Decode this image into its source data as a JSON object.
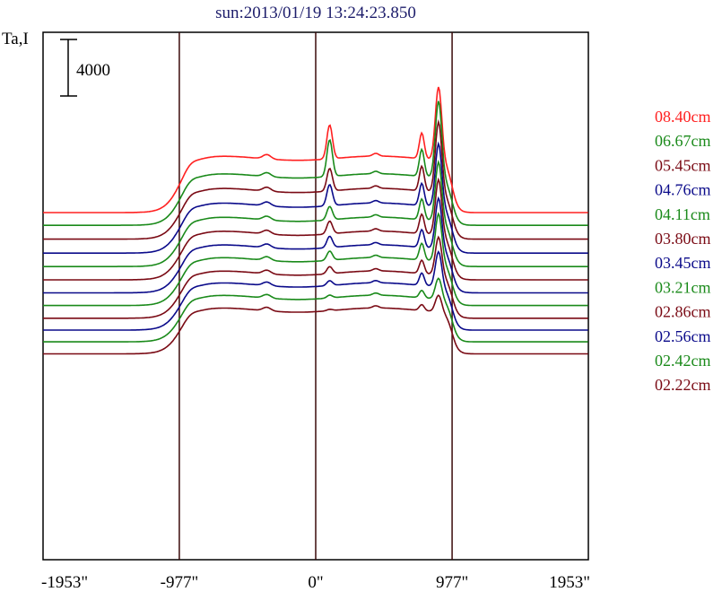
{
  "chart_data": {
    "type": "line",
    "title": "sun:2013/01/19 13:24:23.850",
    "ylabel": "Ta,I",
    "xlabel": "",
    "scale_bar_label": "4000",
    "scale_bar_value": 4000,
    "x_ticks": [
      {
        "value": -1953,
        "label": "-1953\""
      },
      {
        "value": -977,
        "label": "-977\""
      },
      {
        "value": 0,
        "label": "0\""
      },
      {
        "value": 977,
        "label": "977\""
      },
      {
        "value": 1953,
        "label": "1953\""
      }
    ],
    "vertical_lines": [
      -977,
      0,
      977
    ],
    "xlim": [
      -1953,
      1953
    ],
    "colors": {
      "red": "#ff2020",
      "green": "#1a8a1a",
      "maroon": "#7a0a14",
      "blue": "#0a0a8a",
      "title": "#1d1d6b"
    },
    "series": [
      {
        "name": "08.40cm",
        "color": "#ff2020",
        "baseline_y": 0,
        "disk_level": 3850,
        "limb_peak": 5200,
        "center_peak": 2400,
        "center_x": 100
      },
      {
        "name": "06.67cm",
        "color": "#1a8a1a",
        "baseline_y": -900,
        "disk_level": 3500,
        "limb_peak": 5450,
        "center_peak": 2600,
        "center_x": 100
      },
      {
        "name": "05.45cm",
        "color": "#7a0a14",
        "baseline_y": -1880,
        "disk_level": 3450,
        "limb_peak": 5000,
        "center_peak": 1600,
        "center_x": 100
      },
      {
        "name": "04.76cm",
        "color": "#0a0a8a",
        "baseline_y": -2870,
        "disk_level": 3400,
        "limb_peak": 4500,
        "center_peak": 1500,
        "center_x": 100
      },
      {
        "name": "04.11cm",
        "color": "#1a8a1a",
        "baseline_y": -3820,
        "disk_level": 3350,
        "limb_peak": 4200,
        "center_peak": 950,
        "center_x": 100
      },
      {
        "name": "03.80cm",
        "color": "#7a0a14",
        "baseline_y": -4760,
        "disk_level": 3300,
        "limb_peak": 3950,
        "center_peak": 900,
        "center_x": 100
      },
      {
        "name": "03.45cm",
        "color": "#0a0a8a",
        "baseline_y": -5680,
        "disk_level": 3250,
        "limb_peak": 3600,
        "center_peak": 800,
        "center_x": 100
      },
      {
        "name": "03.21cm",
        "color": "#1a8a1a",
        "baseline_y": -6580,
        "disk_level": 3250,
        "limb_peak": 3400,
        "center_peak": 650,
        "center_x": 100
      },
      {
        "name": "02.86cm",
        "color": "#7a0a14",
        "baseline_y": -7480,
        "disk_level": 3200,
        "limb_peak": 2700,
        "center_peak": 500,
        "center_x": 100
      },
      {
        "name": "02.56cm",
        "color": "#0a0a8a",
        "baseline_y": -8320,
        "disk_level": 3200,
        "limb_peak": 2500,
        "center_peak": 350,
        "center_x": 100
      },
      {
        "name": "02.42cm",
        "color": "#1a8a1a",
        "baseline_y": -9150,
        "disk_level": 3150,
        "limb_peak": 1500,
        "center_peak": 200,
        "center_x": 100
      },
      {
        "name": "02.22cm",
        "color": "#7a0a14",
        "baseline_y": -10000,
        "disk_level": 3100,
        "limb_peak": 1200,
        "center_peak": 100,
        "center_x": 100
      }
    ]
  }
}
